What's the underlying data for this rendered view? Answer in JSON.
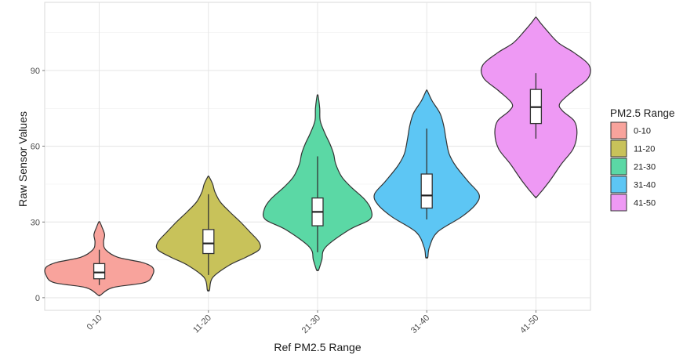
{
  "chart_data": {
    "type": "violin",
    "title": "",
    "xlabel": "Ref PM2.5 Range",
    "ylabel": "Raw Sensor Values",
    "ylim": [
      -5,
      117
    ],
    "y_ticks": [
      0,
      30,
      60,
      90
    ],
    "y_tick_labels": [
      "0",
      "30",
      "60",
      "90"
    ],
    "grid": true,
    "legend": {
      "title": "PM2.5 Range",
      "position": "right"
    },
    "categories": [
      "0-10",
      "11-20",
      "21-30",
      "31-40",
      "41-50"
    ],
    "colors": [
      "#F8A39C",
      "#C8C25A",
      "#5BD8A5",
      "#5DC6F4",
      "#EE99F4"
    ],
    "series": [
      {
        "name": "0-10",
        "violin": {
          "min": 1,
          "max": 30,
          "density": [
            [
              1,
              0.02
            ],
            [
              4,
              0.25
            ],
            [
              6,
              0.85
            ],
            [
              9,
              1.0
            ],
            [
              12,
              1.0
            ],
            [
              14,
              0.8
            ],
            [
              16,
              0.35
            ],
            [
              19,
              0.12
            ],
            [
              22,
              0.08
            ],
            [
              25,
              0.1
            ],
            [
              28,
              0.05
            ],
            [
              30,
              0.01
            ]
          ]
        },
        "box": {
          "whisker_low": 5,
          "q1": 7.5,
          "median": 10,
          "q3": 13.5,
          "whisker_high": 19
        }
      },
      {
        "name": "11-20",
        "violin": {
          "min": 3,
          "max": 48,
          "density": [
            [
              3,
              0.02
            ],
            [
              8,
              0.08
            ],
            [
              13,
              0.4
            ],
            [
              16,
              0.7
            ],
            [
              19,
              0.95
            ],
            [
              22,
              0.95
            ],
            [
              26,
              0.78
            ],
            [
              30,
              0.6
            ],
            [
              34,
              0.4
            ],
            [
              38,
              0.22
            ],
            [
              42,
              0.12
            ],
            [
              45,
              0.08
            ],
            [
              48,
              0.01
            ]
          ]
        },
        "box": {
          "whisker_low": 9,
          "q1": 17.5,
          "median": 21.5,
          "q3": 27,
          "whisker_high": 41
        }
      },
      {
        "name": "21-30",
        "violin": {
          "min": 11,
          "max": 80,
          "density": [
            [
              11,
              0.02
            ],
            [
              15,
              0.08
            ],
            [
              20,
              0.15
            ],
            [
              27,
              0.6
            ],
            [
              31,
              0.98
            ],
            [
              35,
              1.0
            ],
            [
              39,
              0.88
            ],
            [
              44,
              0.62
            ],
            [
              48,
              0.45
            ],
            [
              53,
              0.34
            ],
            [
              57,
              0.3
            ],
            [
              61,
              0.23
            ],
            [
              65,
              0.14
            ],
            [
              70,
              0.05
            ],
            [
              75,
              0.04
            ],
            [
              80,
              0.01
            ]
          ]
        },
        "box": {
          "whisker_low": 18,
          "q1": 28.5,
          "median": 34,
          "q3": 39.5,
          "whisker_high": 56
        }
      },
      {
        "name": "31-40",
        "violin": {
          "min": 16,
          "max": 82,
          "density": [
            [
              16,
              0.02
            ],
            [
              20,
              0.05
            ],
            [
              26,
              0.2
            ],
            [
              32,
              0.65
            ],
            [
              37,
              0.92
            ],
            [
              41,
              0.98
            ],
            [
              46,
              0.78
            ],
            [
              52,
              0.55
            ],
            [
              57,
              0.42
            ],
            [
              63,
              0.36
            ],
            [
              68,
              0.32
            ],
            [
              73,
              0.25
            ],
            [
              78,
              0.1
            ],
            [
              82,
              0.01
            ]
          ]
        },
        "box": {
          "whisker_low": 31,
          "q1": 35.5,
          "median": 40.5,
          "q3": 49,
          "whisker_high": 67
        }
      },
      {
        "name": "41-50",
        "violin": {
          "min": 40,
          "max": 111,
          "density": [
            [
              40,
              0.02
            ],
            [
              46,
              0.25
            ],
            [
              53,
              0.48
            ],
            [
              59,
              0.7
            ],
            [
              65,
              0.77
            ],
            [
              70,
              0.72
            ],
            [
              74,
              0.5
            ],
            [
              77,
              0.45
            ],
            [
              82,
              0.7
            ],
            [
              87,
              0.98
            ],
            [
              92,
              1.0
            ],
            [
              97,
              0.72
            ],
            [
              101,
              0.42
            ],
            [
              106,
              0.2
            ],
            [
              109,
              0.08
            ],
            [
              111,
              0.01
            ]
          ]
        },
        "box": {
          "whisker_low": 63,
          "q1": 69,
          "median": 75.5,
          "q3": 82.5,
          "whisker_high": 89
        }
      }
    ]
  }
}
